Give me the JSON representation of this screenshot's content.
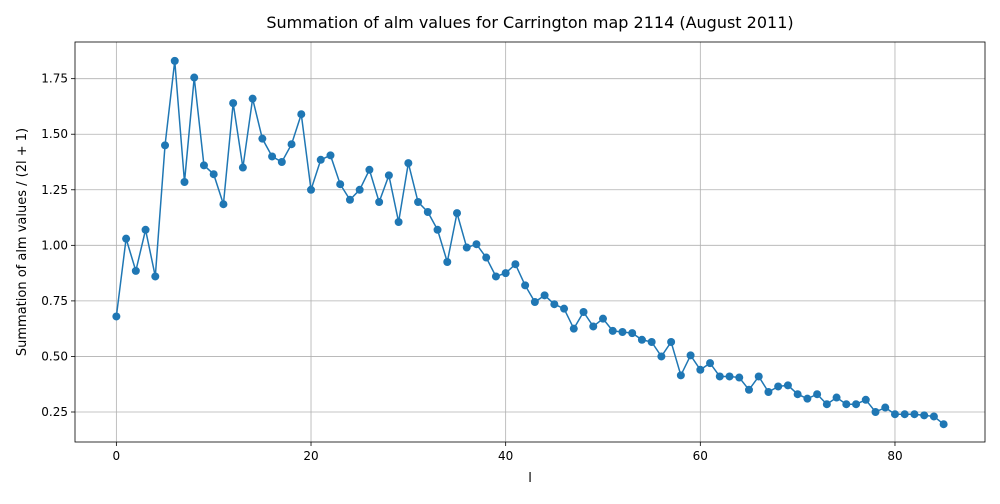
{
  "chart_data": {
    "type": "line",
    "title": "Summation of alm values for Carrington map 2114 (August 2011)",
    "xlabel": "l",
    "ylabel": "Summation of alm values / (2l + 1)",
    "xlim": [
      -4.25,
      89.25
    ],
    "ylim": [
      0.115,
      1.915
    ],
    "xticks": [
      0,
      20,
      40,
      60,
      80
    ],
    "xtick_labels": [
      "0",
      "20",
      "40",
      "60",
      "80"
    ],
    "yticks": [
      0.25,
      0.5,
      0.75,
      1.0,
      1.25,
      1.5,
      1.75
    ],
    "ytick_labels": [
      "0.25",
      "0.50",
      "0.75",
      "1.00",
      "1.25",
      "1.50",
      "1.75"
    ],
    "grid": true,
    "markers": true,
    "series_color": "#1f77b4",
    "x": [
      0,
      1,
      2,
      3,
      4,
      5,
      6,
      7,
      8,
      9,
      10,
      11,
      12,
      13,
      14,
      15,
      16,
      17,
      18,
      19,
      20,
      21,
      22,
      23,
      24,
      25,
      26,
      27,
      28,
      29,
      30,
      31,
      32,
      33,
      34,
      35,
      36,
      37,
      38,
      39,
      40,
      41,
      42,
      43,
      44,
      45,
      46,
      47,
      48,
      49,
      50,
      51,
      52,
      53,
      54,
      55,
      56,
      57,
      58,
      59,
      60,
      61,
      62,
      63,
      64,
      65,
      66,
      67,
      68,
      69,
      70,
      71,
      72,
      73,
      74,
      75,
      76,
      77,
      78,
      79,
      80,
      81,
      82,
      83,
      84,
      85
    ],
    "values": [
      0.68,
      1.03,
      0.885,
      1.07,
      0.86,
      1.45,
      1.83,
      1.285,
      1.755,
      1.36,
      1.32,
      1.185,
      1.64,
      1.35,
      1.66,
      1.48,
      1.4,
      1.375,
      1.455,
      1.59,
      1.25,
      1.385,
      1.405,
      1.275,
      1.205,
      1.25,
      1.34,
      1.195,
      1.315,
      1.105,
      1.37,
      1.195,
      1.15,
      1.07,
      0.925,
      1.145,
      0.99,
      1.005,
      0.945,
      0.86,
      0.875,
      0.915,
      0.82,
      0.745,
      0.775,
      0.735,
      0.715,
      0.625,
      0.7,
      0.635,
      0.67,
      0.615,
      0.61,
      0.605,
      0.575,
      0.565,
      0.5,
      0.565,
      0.415,
      0.505,
      0.44,
      0.47,
      0.41,
      0.41,
      0.405,
      0.35,
      0.41,
      0.34,
      0.365,
      0.37,
      0.33,
      0.31,
      0.33,
      0.285,
      0.315,
      0.285,
      0.285,
      0.305,
      0.25,
      0.27,
      0.24,
      0.24,
      0.24,
      0.235,
      0.23,
      0.195
    ]
  }
}
